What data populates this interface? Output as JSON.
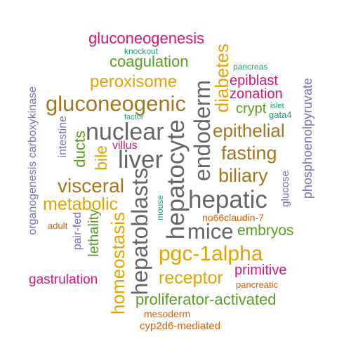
{
  "palette": {
    "pink": "#d6157a",
    "teal": "#1d9e77",
    "olive": "#5a9e22",
    "gold": "#e2a400",
    "brown": "#a5761d",
    "orange": "#d95f02",
    "purple": "#7570b3",
    "gray": "#666666"
  },
  "words": {
    "gluconeogenesis": "gluconeogenesis",
    "knockout": "knockout",
    "coagulation": "coagulation",
    "diabetes": "diabetes",
    "pancreas": "pancreas",
    "islet": "islet",
    "peroxisome": "peroxisome",
    "epiblast": "epiblast",
    "zonation": "zonation",
    "phosphoenolpyruvate": "phosphoenolpyruvate",
    "organogenesis_carboxykinase": "organogenesis carboxykinase",
    "gluconeogenic": "gluconeogenic",
    "endoderm": "endoderm",
    "crypt": "crypt",
    "gata4": "gata4",
    "factor": "factor",
    "intestine": "intestine",
    "nuclear": "nuclear",
    "hepatocyte": "hepatocyte",
    "epithelial": "epithelial",
    "ducts": "ducts",
    "villus": "villus",
    "bile": "bile",
    "liver": "liver",
    "fasting": "fasting",
    "biliary": "biliary",
    "glucose": "glucose",
    "visceral": "visceral",
    "hepatoblasts": "hepatoblasts",
    "hepatic": "hepatic",
    "metabolic": "metabolic",
    "mouse": "mouse",
    "no66claudin7": "no66claudin-7",
    "adult": "adult",
    "pair_fed": "pair-fed",
    "mice": "mice",
    "embryos": "embryos",
    "lethality": "lethality",
    "homeostasis": "homeostasis",
    "pgc1alpha": "pgc-1alpha",
    "primitive": "primitive",
    "gastrulation": "gastrulation",
    "receptor": "receptor",
    "pancreatic": "pancreatic",
    "proliferator_activated": "proliferator-activated",
    "mesoderm": "mesoderm",
    "cyp2d6_mediated": "cyp2d6-mediated"
  }
}
